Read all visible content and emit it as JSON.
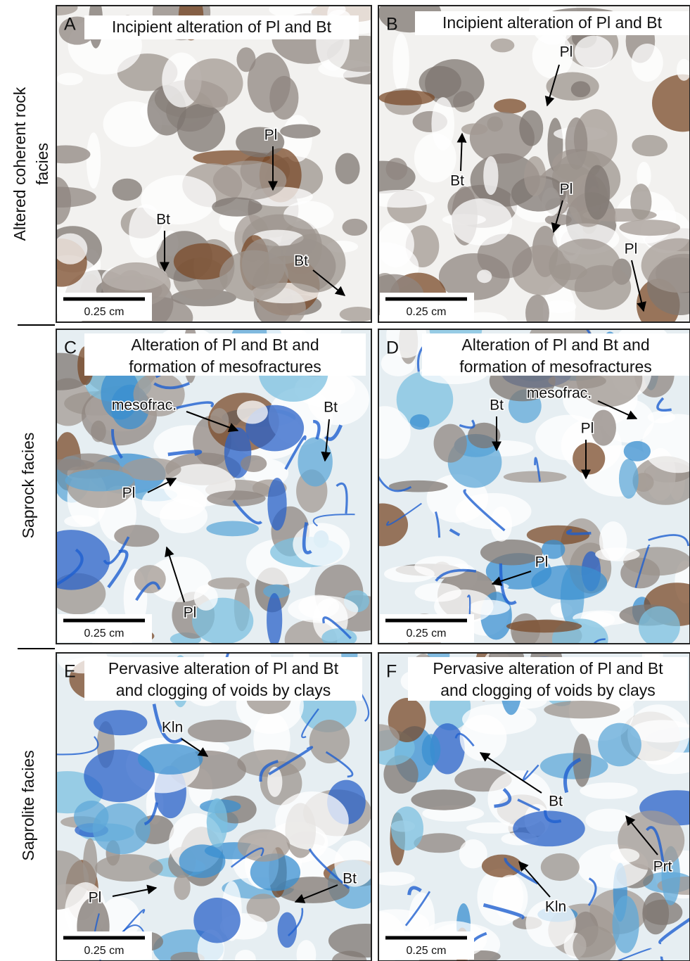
{
  "row_labels": [
    [
      "Altered coherent rock",
      "facies"
    ],
    [
      "Saprock facies"
    ],
    [
      "Saprolite facies"
    ]
  ],
  "panels": [
    {
      "letter": "A",
      "title": [
        "Incipient alteration of Pl and Bt"
      ],
      "annotations": [
        "Pl",
        "Bt",
        "Bt"
      ],
      "scale_label": "0.25 cm"
    },
    {
      "letter": "B",
      "title": [
        "Incipient alteration of Pl and Bt"
      ],
      "annotations": [
        "Pl",
        "Bt",
        "Pl",
        "Pl"
      ],
      "scale_label": "0.25 cm"
    },
    {
      "letter": "C",
      "title": [
        "Alteration of Pl and Bt and",
        "formation of mesofractures"
      ],
      "annotations": [
        "mesofrac.",
        "Bt",
        "Pl",
        "Pl"
      ],
      "scale_label": "0.25 cm"
    },
    {
      "letter": "D",
      "title": [
        "Alteration of Pl and Bt and",
        "formation of mesofractures"
      ],
      "annotations": [
        "Bt",
        "mesofrac.",
        "Pl",
        "Pl"
      ],
      "scale_label": "0.25 cm"
    },
    {
      "letter": "E",
      "title": [
        "Pervasive alteration of Pl and Bt",
        "and clogging of voids by clays"
      ],
      "annotations": [
        "Kln",
        "Bt",
        "Pl"
      ],
      "scale_label": "0.25 cm"
    },
    {
      "letter": "F",
      "title": [
        "Pervasive alteration of Pl and Bt",
        "and clogging of voids by clays"
      ],
      "annotations": [
        "Bt",
        "Prt",
        "Kln"
      ],
      "scale_label": "0.25 cm"
    }
  ]
}
